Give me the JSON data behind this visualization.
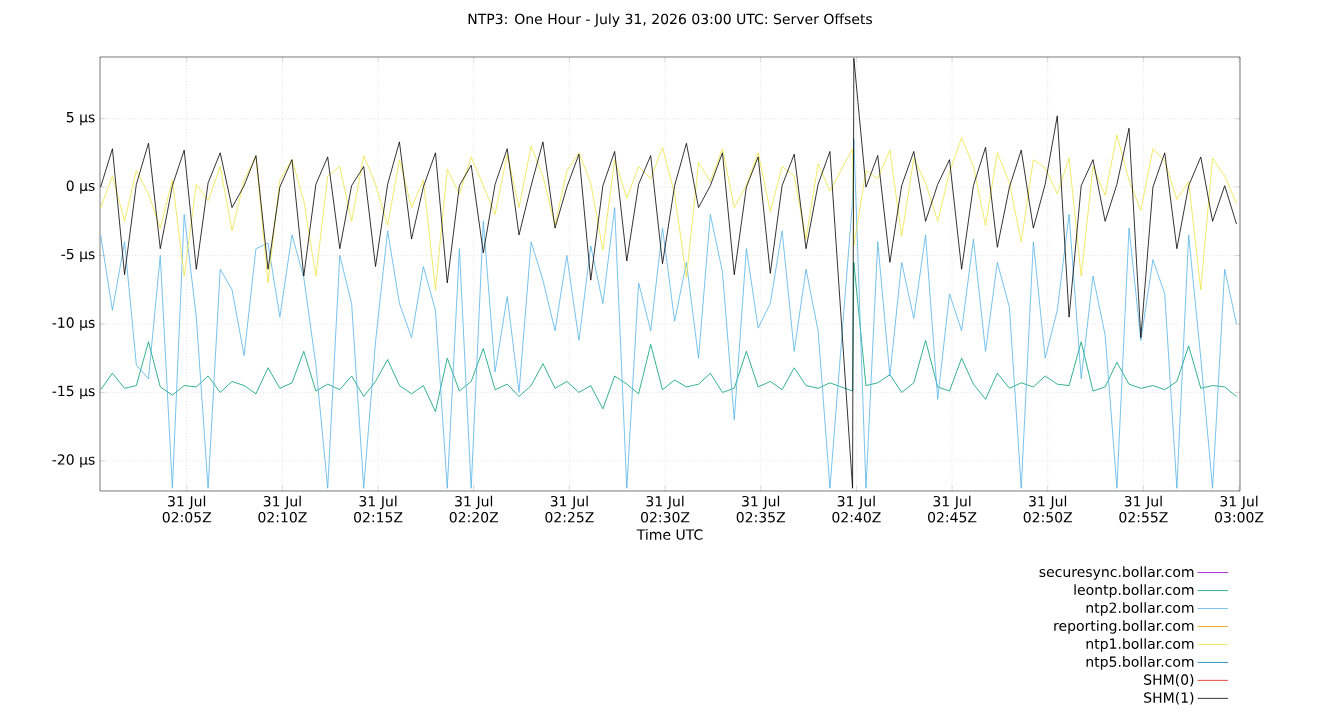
{
  "chart_data": {
    "type": "line",
    "title": "NTP3: One Hour - July 31, 2026 03:00 UTC: Server Offsets",
    "xlabel": "Time UTC",
    "xlim": [
      "2026-07-31T02:00:28",
      "2026-07-31T03:00:03"
    ],
    "ylim": [
      -22.2,
      9.5
    ],
    "xticks": [
      {
        "value": "2026-07-31T02:05",
        "label": "31 Jul 02:05Z"
      },
      {
        "value": "2026-07-31T02:10",
        "label": "31 Jul 02:10Z"
      },
      {
        "value": "2026-07-31T02:15",
        "label": "31 Jul 02:15Z"
      },
      {
        "value": "2026-07-31T02:20",
        "label": "31 Jul 02:20Z"
      },
      {
        "value": "2026-07-31T02:25",
        "label": "31 Jul 02:25Z"
      },
      {
        "value": "2026-07-31T02:30",
        "label": "31 Jul 02:30Z"
      },
      {
        "value": "2026-07-31T02:35",
        "label": "31 Jul 02:35Z"
      },
      {
        "value": "2026-07-31T02:40",
        "label": "31 Jul 02:40Z"
      },
      {
        "value": "2026-07-31T02:45",
        "label": "31 Jul 02:45Z"
      },
      {
        "value": "2026-07-31T02:50",
        "label": "31 Jul 02:50Z"
      },
      {
        "value": "2026-07-31T02:55",
        "label": "31 Jul 02:55Z"
      },
      {
        "value": "2026-07-31T03:00",
        "label": "31 Jul 03:00Z"
      }
    ],
    "yticks": [
      {
        "value": 5,
        "label": "5 µs"
      },
      {
        "value": 0,
        "label": "0 µs"
      },
      {
        "value": -5,
        "label": "-5 µs"
      },
      {
        "value": -10,
        "label": "-10 µs"
      },
      {
        "value": -15,
        "label": "-15 µs"
      },
      {
        "value": -20,
        "label": "-20 µs"
      }
    ],
    "grid": true,
    "legend": "bottom right",
    "x": [
      "2026-07-31T02:00:30",
      "2026-07-31T02:01:07",
      "2026-07-31T02:01:45",
      "2026-07-31T02:02:22",
      "2026-07-31T02:03:00",
      "2026-07-31T02:03:37",
      "2026-07-31T02:04:15",
      "2026-07-31T02:04:52",
      "2026-07-31T02:05:30",
      "2026-07-31T02:06:07",
      "2026-07-31T02:06:45",
      "2026-07-31T02:07:22",
      "2026-07-31T02:08:00",
      "2026-07-31T02:08:37",
      "2026-07-31T02:09:15",
      "2026-07-31T02:09:52",
      "2026-07-31T02:10:30",
      "2026-07-31T02:11:07",
      "2026-07-31T02:11:45",
      "2026-07-31T02:12:22",
      "2026-07-31T02:13:00",
      "2026-07-31T02:13:37",
      "2026-07-31T02:14:15",
      "2026-07-31T02:14:52",
      "2026-07-31T02:15:30",
      "2026-07-31T02:16:07",
      "2026-07-31T02:16:45",
      "2026-07-31T02:17:22",
      "2026-07-31T02:18:00",
      "2026-07-31T02:18:37",
      "2026-07-31T02:19:15",
      "2026-07-31T02:19:52",
      "2026-07-31T02:20:30",
      "2026-07-31T02:21:07",
      "2026-07-31T02:21:45",
      "2026-07-31T02:22:22",
      "2026-07-31T02:23:00",
      "2026-07-31T02:23:37",
      "2026-07-31T02:24:15",
      "2026-07-31T02:24:52",
      "2026-07-31T02:25:30",
      "2026-07-31T02:26:07",
      "2026-07-31T02:26:45",
      "2026-07-31T02:27:22",
      "2026-07-31T02:28:00",
      "2026-07-31T02:28:37",
      "2026-07-31T02:29:15",
      "2026-07-31T02:29:52",
      "2026-07-31T02:30:30",
      "2026-07-31T02:31:07",
      "2026-07-31T02:31:45",
      "2026-07-31T02:32:22",
      "2026-07-31T02:33:00",
      "2026-07-31T02:33:37",
      "2026-07-31T02:34:15",
      "2026-07-31T02:34:52",
      "2026-07-31T02:35:30",
      "2026-07-31T02:36:07",
      "2026-07-31T02:36:45",
      "2026-07-31T02:37:22",
      "2026-07-31T02:38:00",
      "2026-07-31T02:38:37",
      "2026-07-31T02:39:48",
      "2026-07-31T02:39:52",
      "2026-07-31T02:40:30",
      "2026-07-31T02:41:07",
      "2026-07-31T02:41:45",
      "2026-07-31T02:42:22",
      "2026-07-31T02:43:00",
      "2026-07-31T02:43:37",
      "2026-07-31T02:44:15",
      "2026-07-31T02:44:52",
      "2026-07-31T02:45:30",
      "2026-07-31T02:46:07",
      "2026-07-31T02:46:45",
      "2026-07-31T02:47:22",
      "2026-07-31T02:48:00",
      "2026-07-31T02:48:37",
      "2026-07-31T02:49:15",
      "2026-07-31T02:49:52",
      "2026-07-31T02:50:30",
      "2026-07-31T02:51:07",
      "2026-07-31T02:51:45",
      "2026-07-31T02:52:22",
      "2026-07-31T02:53:00",
      "2026-07-31T02:53:37",
      "2026-07-31T02:54:15",
      "2026-07-31T02:54:52",
      "2026-07-31T02:55:30",
      "2026-07-31T02:56:07",
      "2026-07-31T02:56:45",
      "2026-07-31T02:57:22",
      "2026-07-31T02:58:00",
      "2026-07-31T02:58:37",
      "2026-07-31T02:59:15",
      "2026-07-31T02:59:52"
    ],
    "series": [
      {
        "name": "securesync.bollar.com",
        "color": "#9400d3",
        "values": [
          null,
          null,
          null,
          null,
          null,
          null,
          null,
          null,
          null,
          null,
          null,
          null,
          null,
          null,
          null,
          null,
          null,
          null,
          null,
          null,
          null,
          null,
          null,
          null,
          null,
          null,
          null,
          null,
          null,
          null,
          null,
          null,
          null,
          null,
          null,
          null,
          null,
          null,
          null,
          null,
          null,
          null,
          null,
          null,
          null,
          null,
          null,
          null,
          null,
          null,
          null,
          null,
          null,
          null,
          null,
          null,
          null,
          null,
          null,
          null,
          null,
          null,
          null,
          null,
          null,
          null,
          null,
          null,
          null,
          null,
          null,
          null,
          null,
          null,
          null,
          null,
          null,
          null,
          null,
          null,
          null,
          null,
          null,
          null,
          null,
          null,
          null,
          null,
          null,
          null,
          null,
          null,
          null,
          null,
          null,
          null
        ]
      },
      {
        "name": "leontp.bollar.com",
        "color": "#009e73",
        "values": [
          -14.8,
          -13.6,
          -14.7,
          -14.5,
          -11.3,
          -14.6,
          -15.2,
          -14.5,
          -14.6,
          -13.8,
          -15,
          -14.2,
          -14.5,
          -15.1,
          -13.2,
          -14.7,
          -14.3,
          -12,
          -14.9,
          -14.4,
          -14.8,
          -13.8,
          -15.3,
          -14.2,
          -12.6,
          -14.5,
          -15.1,
          -14.5,
          -16.4,
          -12.5,
          -14.9,
          -14.2,
          -11.8,
          -14.8,
          -14.4,
          -15.3,
          -14.5,
          -12.9,
          -14.7,
          -14.2,
          -15,
          -14.5,
          -16.2,
          -13.8,
          -14.4,
          -15.1,
          -11.5,
          -14.8,
          -14.1,
          -14.6,
          -14.4,
          -13.6,
          -15,
          -14.7,
          -12,
          -14.6,
          -14.2,
          -14.8,
          -13.2,
          -14.5,
          -14.7,
          -14.3,
          -14.9,
          -5.5,
          -14.5,
          -14.3,
          -13.7,
          -15,
          -14.3,
          -11.2,
          -14.6,
          -14.9,
          -12.5,
          -14.4,
          -15.5,
          -13.6,
          -14.7,
          -14.3,
          -14.6,
          -13.8,
          -14.4,
          -14.5,
          -11.3,
          -14.9,
          -14.6,
          -12.8,
          -14.4,
          -14.7,
          -14.5,
          -14.8,
          -14.2,
          -11.6,
          -14.7,
          -14.5,
          -14.6,
          -15.3
        ]
      },
      {
        "name": "ntp2.bollar.com",
        "color": "#56b4e9",
        "values": [
          -3.5,
          -9,
          -4,
          -13,
          -14,
          -5,
          -22,
          -2,
          -9.5,
          -22,
          -6,
          -7.5,
          -12.3,
          -4.5,
          -4.1,
          -9.5,
          -3.5,
          -6.6,
          -13,
          -22,
          -5,
          -8.5,
          -22,
          -11.3,
          -3.2,
          -8.5,
          -11,
          -5.8,
          -9,
          -22,
          -4.5,
          -22,
          -2.5,
          -13.5,
          -8,
          -15,
          -4,
          -6.8,
          -10.5,
          -5,
          -11.2,
          -4.3,
          -8.5,
          -1.5,
          -22,
          -7,
          -10.5,
          -3,
          -9.8,
          -5.5,
          -12.5,
          -2,
          -6.2,
          -17,
          -4.5,
          -10.3,
          -8.5,
          -3.2,
          -12,
          -6,
          -10.5,
          -22,
          -1,
          3.5,
          -22,
          -4,
          -13.8,
          -5.5,
          -9.6,
          -3.5,
          -15.5,
          -7.8,
          -10.5,
          -3.8,
          -12,
          -5.5,
          -8.8,
          -22,
          -4,
          -12.5,
          -9,
          -2,
          -14,
          -6.5,
          -10.8,
          -22,
          -3,
          -11.2,
          -5.3,
          -7.8,
          -22,
          -3.5,
          -12.5,
          -22,
          -6,
          -10
        ]
      },
      {
        "name": "reporting.bollar.com",
        "color": "#e69f00",
        "values": [
          null,
          null,
          null,
          null,
          null,
          null,
          null,
          null,
          null,
          null,
          null,
          null,
          null,
          null,
          null,
          null,
          null,
          null,
          null,
          null,
          null,
          null,
          null,
          null,
          null,
          null,
          null,
          null,
          null,
          null,
          null,
          null,
          null,
          null,
          null,
          null,
          null,
          null,
          null,
          null,
          null,
          null,
          null,
          null,
          null,
          null,
          null,
          null,
          null,
          null,
          null,
          null,
          null,
          null,
          null,
          null,
          null,
          null,
          null,
          null,
          null,
          null,
          null,
          null,
          null,
          null,
          null,
          null,
          null,
          null,
          null,
          null,
          null,
          null,
          null,
          null,
          null,
          null,
          null,
          null,
          null,
          null,
          null,
          null,
          null,
          null,
          null,
          null,
          null,
          null,
          null,
          null,
          null,
          null,
          null,
          null
        ]
      },
      {
        "name": "ntp1.bollar.com",
        "color": "#f0e442",
        "values": [
          -1.5,
          0.8,
          -2.5,
          1.2,
          -0.5,
          -3,
          0.5,
          -6.5,
          0.2,
          -1,
          1.5,
          -3.2,
          0.5,
          2.2,
          -7,
          0.5,
          2,
          -1,
          -6.5,
          0.8,
          1.5,
          -2.5,
          2.3,
          0.2,
          -2.8,
          2,
          -1.5,
          0.5,
          -7.5,
          1.3,
          -0.5,
          2.2,
          0.1,
          -2,
          2.4,
          -1.5,
          3,
          0.8,
          -2.8,
          1.2,
          2.5,
          0.3,
          -4.6,
          2,
          -0.8,
          1.5,
          0.6,
          2.9,
          -0.5,
          -6.6,
          1.8,
          0.4,
          2.8,
          -1.5,
          0.1,
          2.5,
          -1.8,
          1.5,
          0.8,
          -3.8,
          1.7,
          -0.3,
          2.8,
          -4.3,
          1.2,
          0.6,
          2.7,
          -3.6,
          2.1,
          0.3,
          -2.5,
          1.1,
          3.6,
          1.5,
          -2.8,
          2.5,
          0.3,
          -4,
          2,
          1.4,
          -0.5,
          2.1,
          -6.5,
          1.5,
          -0.6,
          3.8,
          0.5,
          -1.7,
          2.8,
          1.9,
          -0.9,
          0.4,
          -7.5,
          2.1,
          0.8,
          -1.2
        ]
      },
      {
        "name": "ntp5.bollar.com",
        "color": "#0072b2",
        "values": [
          null,
          null,
          null,
          null,
          null,
          null,
          null,
          null,
          null,
          null,
          null,
          null,
          null,
          null,
          null,
          null,
          null,
          null,
          null,
          null,
          null,
          null,
          null,
          null,
          null,
          null,
          null,
          null,
          null,
          null,
          null,
          null,
          null,
          null,
          null,
          null,
          null,
          null,
          null,
          null,
          null,
          null,
          null,
          null,
          null,
          null,
          null,
          null,
          null,
          null,
          null,
          null,
          null,
          null,
          null,
          null,
          null,
          null,
          null,
          null,
          null,
          null,
          null,
          null,
          null,
          null,
          null,
          null,
          null,
          null,
          null,
          null,
          null,
          null,
          null,
          null,
          null,
          null,
          null,
          null,
          null,
          null,
          null,
          null,
          null,
          null,
          null,
          null,
          null,
          null,
          null,
          null,
          null,
          null,
          null,
          null
        ]
      },
      {
        "name": "SHM(0)",
        "color": "#e51e10",
        "values": [
          null,
          null,
          null,
          null,
          null,
          null,
          null,
          null,
          null,
          null,
          null,
          null,
          null,
          null,
          null,
          null,
          null,
          null,
          null,
          null,
          null,
          null,
          null,
          null,
          null,
          null,
          null,
          null,
          null,
          null,
          null,
          null,
          null,
          null,
          null,
          null,
          null,
          null,
          null,
          null,
          null,
          null,
          null,
          null,
          null,
          null,
          null,
          null,
          null,
          null,
          null,
          null,
          null,
          null,
          null,
          null,
          null,
          null,
          null,
          null,
          null,
          null,
          null,
          null,
          null,
          null,
          null,
          null,
          null,
          null,
          null,
          null,
          null,
          null,
          null,
          null,
          null,
          null,
          null,
          null,
          null,
          null,
          null,
          null,
          null,
          null,
          null,
          null,
          null,
          null,
          null,
          null,
          null,
          null,
          null,
          null
        ]
      },
      {
        "name": "SHM(1)",
        "color": "#000000",
        "values": [
          0,
          2.8,
          -6.4,
          0.2,
          3.2,
          -4.5,
          0.1,
          2.7,
          -6,
          0.3,
          2.5,
          -1.5,
          0.1,
          2.3,
          -6,
          0,
          2,
          -6.5,
          0.2,
          2.2,
          -4.5,
          0.1,
          1.5,
          -5.8,
          0.2,
          3.3,
          -3.8,
          0,
          2.5,
          -7,
          0.1,
          1.6,
          -4.8,
          0.2,
          2.8,
          -3.5,
          0.1,
          3.3,
          -3,
          0,
          2.4,
          -6.8,
          0.1,
          2.6,
          -5.4,
          0.2,
          2.3,
          -5.6,
          0.1,
          3.2,
          -1.5,
          0.1,
          2.5,
          -6.4,
          0,
          2.2,
          -6.3,
          0.1,
          2.4,
          -4.5,
          0.2,
          2.6,
          -22,
          9.4,
          0,
          2.3,
          -5.5,
          0.1,
          2.6,
          -2.5,
          0.2,
          2,
          -6,
          0.1,
          2.9,
          -4.4,
          0,
          2.7,
          -3,
          0.2,
          5.2,
          -9.5,
          0.1,
          2,
          -2.5,
          0.2,
          4.3,
          -11,
          0,
          2.5,
          -4.5,
          0.1,
          2.2,
          -2.5,
          0.1,
          -2.7
        ]
      }
    ]
  }
}
